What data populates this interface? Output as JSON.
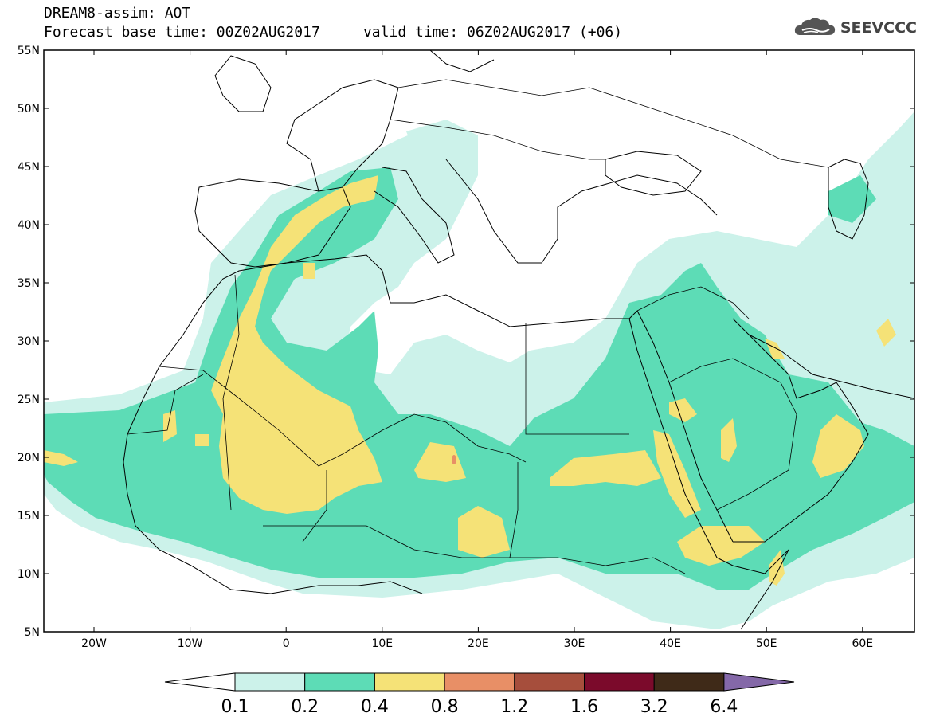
{
  "header": {
    "line1": "DREAM8-assim: AOT",
    "line2": "Forecast base time: 00Z02AUG2017     valid time: 06Z02AUG2017 (+06)"
  },
  "logo": {
    "text": "SEEVCCC",
    "icon": "cloud-icon"
  },
  "map": {
    "lat_labels": [
      "55N",
      "50N",
      "45N",
      "40N",
      "35N",
      "30N",
      "25N",
      "20N",
      "15N",
      "10N",
      "5N"
    ],
    "lon_labels": [
      "20W",
      "10W",
      "0",
      "10E",
      "20E",
      "30E",
      "40E",
      "50E",
      "60E"
    ]
  },
  "colorbar": {
    "labels": [
      "0.1",
      "0.2",
      "0.4",
      "0.8",
      "1.2",
      "1.6",
      "3.2",
      "6.4"
    ],
    "colors": [
      "#ccf2ea",
      "#5ddcb6",
      "#f5e277",
      "#e88f66",
      "#a64e3c",
      "#7b0a2b",
      "#3f2a18"
    ],
    "overflow_color": "#8468a8",
    "underflow_color": "#ffffff"
  },
  "colors": {
    "light_cyan": "#ccf2ea",
    "green": "#5ddcb6",
    "yellow": "#f5e277",
    "orange": "#e88f66"
  }
}
